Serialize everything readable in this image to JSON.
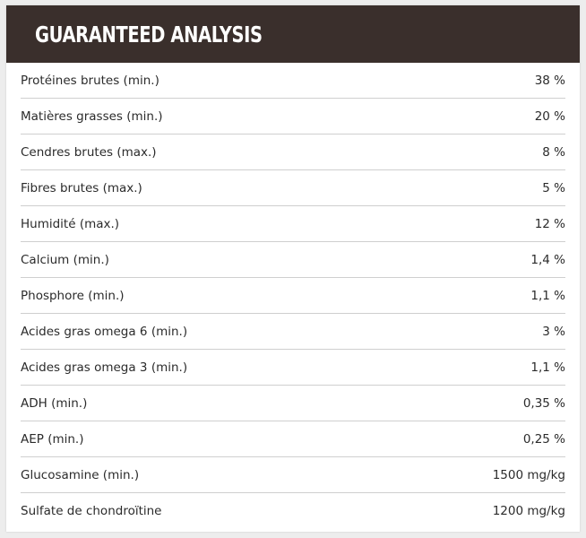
{
  "header": {
    "title": "GUARANTEED ANALYSIS"
  },
  "rows": [
    {
      "label": "Protéines brutes (min.)",
      "value": "38 %"
    },
    {
      "label": "Matières grasses (min.)",
      "value": "20 %"
    },
    {
      "label": "Cendres brutes (max.)",
      "value": "8 %"
    },
    {
      "label": "Fibres brutes (max.)",
      "value": "5 %"
    },
    {
      "label": "Humidité (max.)",
      "value": "12 %"
    },
    {
      "label": "Calcium (min.)",
      "value": "1,4 %"
    },
    {
      "label": "Phosphore (min.)",
      "value": "1,1 %"
    },
    {
      "label": "Acides gras omega 6 (min.)",
      "value": "3 %"
    },
    {
      "label": "Acides gras omega 3 (min.)",
      "value": "1,1 %"
    },
    {
      "label": "ADH (min.)",
      "value": "0,35 %"
    },
    {
      "label": "AEP (min.)",
      "value": "0,25 %"
    },
    {
      "label": "Glucosamine (min.)",
      "value": "1500 mg/kg"
    },
    {
      "label": "Sulfate de chondroïtine",
      "value": "1200 mg/kg"
    }
  ]
}
